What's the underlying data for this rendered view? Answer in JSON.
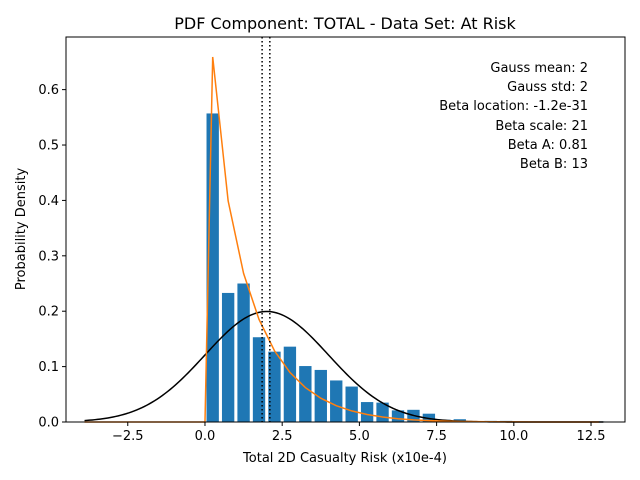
{
  "chart_data": {
    "type": "bar",
    "title": "PDF Component: TOTAL - Data Set: At Risk",
    "xlabel": "Total 2D Casualty Risk (x10e-4)",
    "ylabel": "Probability Density",
    "xlim": [
      -4.5,
      13.6
    ],
    "ylim": [
      0,
      0.695
    ],
    "xticks": [
      -2.5,
      0.0,
      2.5,
      5.0,
      7.5,
      10.0,
      12.5
    ],
    "xtick_labels": [
      "−2.5",
      "0.0",
      "2.5",
      "5.0",
      "7.5",
      "10.0",
      "12.5"
    ],
    "yticks": [
      0.0,
      0.1,
      0.2,
      0.3,
      0.4,
      0.5,
      0.6
    ],
    "ytick_labels": [
      "0.0",
      "0.1",
      "0.2",
      "0.3",
      "0.4",
      "0.5",
      "0.6"
    ],
    "grid": false,
    "bin_width": 0.5,
    "bar_width": 0.4,
    "bar_color": "#1f77b4",
    "bars": {
      "x": [
        0.25,
        0.75,
        1.25,
        1.75,
        2.25,
        2.75,
        3.25,
        3.75,
        4.25,
        4.75,
        5.25,
        5.75,
        6.25,
        6.75,
        7.25,
        7.75,
        8.25,
        8.75,
        9.25,
        9.75,
        10.25,
        12.75
      ],
      "heights": [
        0.557,
        0.233,
        0.25,
        0.153,
        0.127,
        0.136,
        0.101,
        0.094,
        0.075,
        0.064,
        0.036,
        0.035,
        0.021,
        0.022,
        0.015,
        0.004,
        0.005,
        0.001,
        0.002,
        0.002,
        0.001,
        0.001
      ]
    },
    "gauss_curve": {
      "name": "Gauss",
      "color": "#000000",
      "mean": 2,
      "std": 2,
      "x_range": [
        -3.9,
        12.9
      ]
    },
    "beta_curve": {
      "name": "Beta",
      "color": "#ff7f0e",
      "location": 0.0,
      "scale": 21,
      "a": 0.81,
      "b": 13,
      "x_range": [
        -3.9,
        12.9
      ]
    },
    "vlines": {
      "x": [
        1.85,
        2.1
      ],
      "style": "dotted",
      "color": "#000000"
    },
    "annotations": [
      "Gauss mean: 2",
      "Gauss std: 2",
      "Beta location: -1.2e-31",
      "Beta scale: 21",
      "Beta A: 0.81",
      "Beta B: 13"
    ]
  }
}
